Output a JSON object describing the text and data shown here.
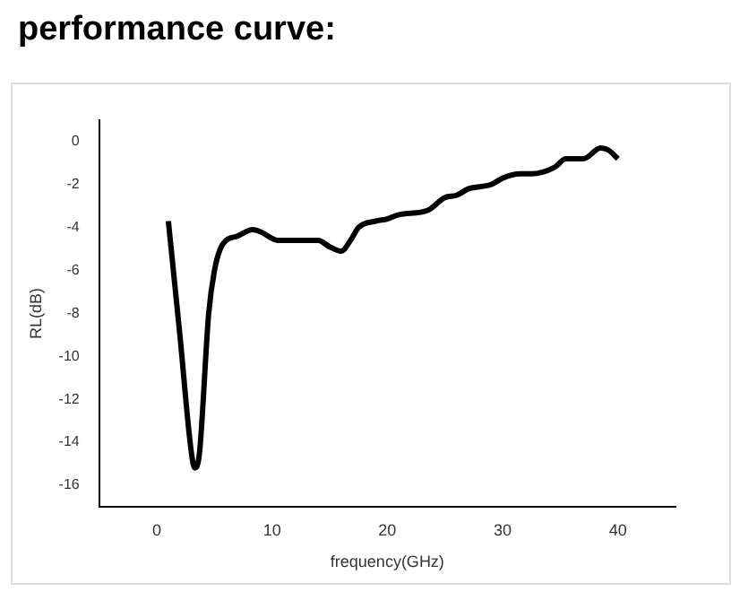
{
  "chart_data": {
    "type": "line",
    "title": "performance curve:",
    "xlabel": "frequency(GHz)",
    "ylabel": "RL(dB)",
    "x": [
      1,
      2,
      3,
      3.3,
      3.7,
      4.5,
      5,
      5.5,
      6,
      7,
      8.3,
      9,
      10.5,
      12,
      14,
      15,
      16,
      16.8,
      17.5,
      19,
      20,
      21,
      23.5,
      25,
      26,
      27,
      29,
      30,
      31.5,
      32.5,
      34.5,
      35.5,
      37,
      38.5,
      39.2,
      40
    ],
    "series": [
      {
        "color": "#000000",
        "values": [
          -3.7,
          -9,
          -14.5,
          -15.2,
          -14.5,
          -8,
          -6,
          -5,
          -4.6,
          -4.4,
          -4.1,
          -4.2,
          -4.6,
          -4.6,
          -4.6,
          -4.9,
          -5.1,
          -4.6,
          -4,
          -3.7,
          -3.6,
          -3.4,
          -3.2,
          -2.6,
          -2.5,
          -2.2,
          -2,
          -1.7,
          -1.5,
          -1.5,
          -1.2,
          -0.8,
          -0.8,
          -0.3,
          -0.4,
          -0.8
        ]
      }
    ],
    "xlim": [
      -5,
      45
    ],
    "xticks": [
      0,
      10,
      20,
      30,
      40
    ],
    "ylim": [
      -17,
      1
    ],
    "yticks": [
      -16,
      -14,
      -12,
      -10,
      -8,
      -6,
      -4,
      -2,
      0
    ],
    "grid": false,
    "legend": false,
    "marker": "none",
    "line_style": "solid"
  }
}
